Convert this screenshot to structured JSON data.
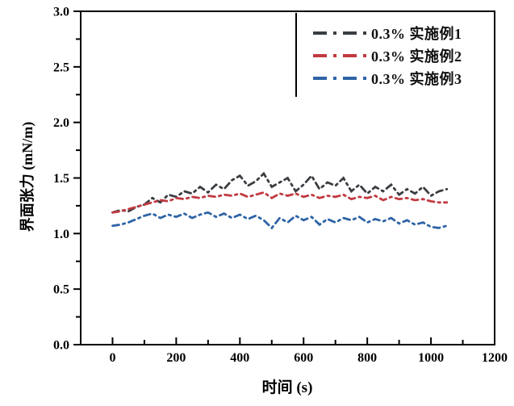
{
  "background": "#ffffff",
  "axes_color": "#000000",
  "chart_data": {
    "type": "line",
    "title": "",
    "xlabel": "时间 (s)",
    "ylabel": "界面张力 (mN/m)",
    "xlim": [
      -100,
      1200
    ],
    "ylim": [
      0,
      3
    ],
    "grid": false,
    "legend_position": "top-right",
    "line_style": "dash-dot",
    "x_major_ticks": [
      0,
      200,
      400,
      600,
      800,
      1000,
      1200
    ],
    "x_minor_ticks": [
      100,
      300,
      500,
      700,
      900,
      1100
    ],
    "y_major_ticks": [
      0,
      0.5,
      1,
      1.5,
      2,
      2.5,
      3
    ],
    "y_minor_ticks": [
      0.25,
      0.75,
      1.25,
      1.75,
      2.25,
      2.75
    ],
    "x_tick_labels": [
      "0",
      "200",
      "400",
      "600",
      "800",
      "1000",
      "1200"
    ],
    "y_tick_labels": [
      "0.0",
      "0.5",
      "1.0",
      "1.5",
      "2.0",
      "2.5",
      "3.0"
    ],
    "series": [
      {
        "label": "0.3% 实施例1",
        "color": "#3a3e42",
        "points": [
          [
            0,
            1.19
          ],
          [
            25,
            1.21
          ],
          [
            50,
            1.2
          ],
          [
            75,
            1.24
          ],
          [
            100,
            1.26
          ],
          [
            125,
            1.32
          ],
          [
            150,
            1.28
          ],
          [
            175,
            1.35
          ],
          [
            200,
            1.33
          ],
          [
            225,
            1.38
          ],
          [
            250,
            1.36
          ],
          [
            275,
            1.42
          ],
          [
            300,
            1.37
          ],
          [
            325,
            1.44
          ],
          [
            350,
            1.4
          ],
          [
            375,
            1.48
          ],
          [
            400,
            1.52
          ],
          [
            425,
            1.43
          ],
          [
            450,
            1.47
          ],
          [
            475,
            1.54
          ],
          [
            500,
            1.42
          ],
          [
            525,
            1.46
          ],
          [
            550,
            1.5
          ],
          [
            575,
            1.38
          ],
          [
            600,
            1.44
          ],
          [
            625,
            1.52
          ],
          [
            650,
            1.4
          ],
          [
            675,
            1.46
          ],
          [
            700,
            1.43
          ],
          [
            725,
            1.5
          ],
          [
            750,
            1.38
          ],
          [
            775,
            1.44
          ],
          [
            800,
            1.36
          ],
          [
            825,
            1.42
          ],
          [
            850,
            1.38
          ],
          [
            875,
            1.44
          ],
          [
            900,
            1.35
          ],
          [
            925,
            1.4
          ],
          [
            950,
            1.36
          ],
          [
            975,
            1.42
          ],
          [
            1000,
            1.34
          ],
          [
            1025,
            1.38
          ],
          [
            1050,
            1.4
          ]
        ]
      },
      {
        "label": "0.3% 实施例2",
        "color": "#c13a40",
        "points": [
          [
            0,
            1.19
          ],
          [
            25,
            1.2
          ],
          [
            50,
            1.22
          ],
          [
            75,
            1.24
          ],
          [
            100,
            1.26
          ],
          [
            125,
            1.28
          ],
          [
            150,
            1.3
          ],
          [
            175,
            1.29
          ],
          [
            200,
            1.32
          ],
          [
            225,
            1.31
          ],
          [
            250,
            1.33
          ],
          [
            275,
            1.32
          ],
          [
            300,
            1.34
          ],
          [
            325,
            1.33
          ],
          [
            350,
            1.35
          ],
          [
            375,
            1.34
          ],
          [
            400,
            1.36
          ],
          [
            425,
            1.33
          ],
          [
            450,
            1.35
          ],
          [
            475,
            1.37
          ],
          [
            500,
            1.32
          ],
          [
            525,
            1.36
          ],
          [
            550,
            1.34
          ],
          [
            575,
            1.36
          ],
          [
            600,
            1.33
          ],
          [
            625,
            1.35
          ],
          [
            650,
            1.32
          ],
          [
            675,
            1.34
          ],
          [
            700,
            1.33
          ],
          [
            725,
            1.35
          ],
          [
            750,
            1.31
          ],
          [
            775,
            1.33
          ],
          [
            800,
            1.32
          ],
          [
            825,
            1.34
          ],
          [
            850,
            1.3
          ],
          [
            875,
            1.33
          ],
          [
            900,
            1.31
          ],
          [
            925,
            1.32
          ],
          [
            950,
            1.3
          ],
          [
            975,
            1.31
          ],
          [
            1000,
            1.29
          ],
          [
            1025,
            1.28
          ],
          [
            1050,
            1.28
          ]
        ]
      },
      {
        "label": "0.3% 实施例3",
        "color": "#2e64a6",
        "points": [
          [
            0,
            1.07
          ],
          [
            25,
            1.08
          ],
          [
            50,
            1.1
          ],
          [
            75,
            1.13
          ],
          [
            100,
            1.16
          ],
          [
            125,
            1.18
          ],
          [
            150,
            1.14
          ],
          [
            175,
            1.17
          ],
          [
            200,
            1.15
          ],
          [
            225,
            1.18
          ],
          [
            250,
            1.14
          ],
          [
            275,
            1.17
          ],
          [
            300,
            1.19
          ],
          [
            325,
            1.15
          ],
          [
            350,
            1.18
          ],
          [
            375,
            1.14
          ],
          [
            400,
            1.17
          ],
          [
            425,
            1.13
          ],
          [
            450,
            1.16
          ],
          [
            475,
            1.12
          ],
          [
            500,
            1.05
          ],
          [
            525,
            1.14
          ],
          [
            550,
            1.1
          ],
          [
            575,
            1.16
          ],
          [
            600,
            1.12
          ],
          [
            625,
            1.15
          ],
          [
            650,
            1.08
          ],
          [
            675,
            1.13
          ],
          [
            700,
            1.1
          ],
          [
            725,
            1.14
          ],
          [
            750,
            1.12
          ],
          [
            775,
            1.15
          ],
          [
            800,
            1.1
          ],
          [
            825,
            1.13
          ],
          [
            850,
            1.11
          ],
          [
            875,
            1.14
          ],
          [
            900,
            1.09
          ],
          [
            925,
            1.12
          ],
          [
            950,
            1.08
          ],
          [
            975,
            1.1
          ],
          [
            1000,
            1.06
          ],
          [
            1025,
            1.05
          ],
          [
            1050,
            1.07
          ]
        ]
      }
    ]
  }
}
